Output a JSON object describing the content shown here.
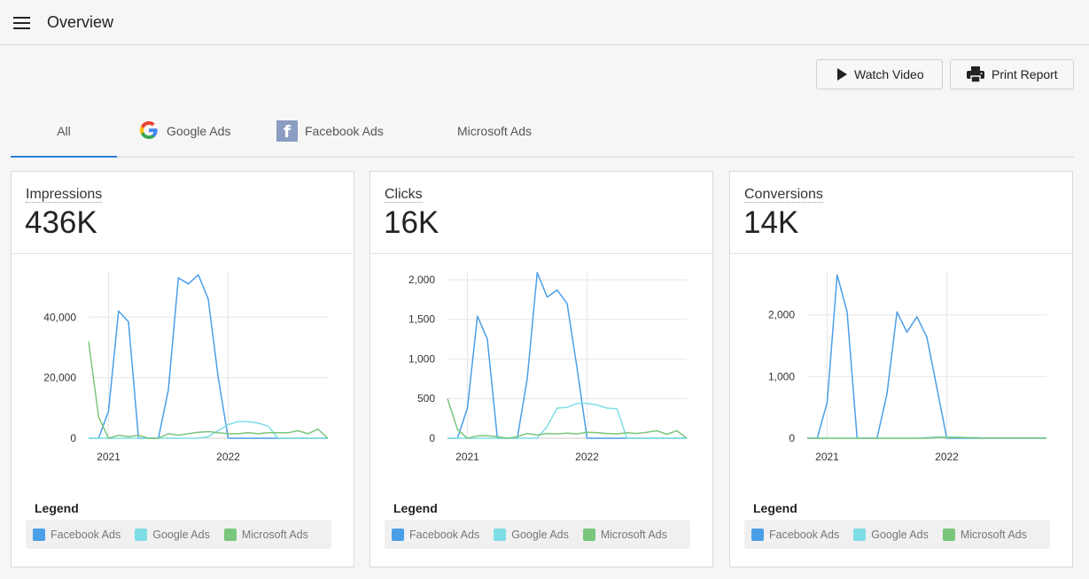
{
  "header": {
    "title": "Overview",
    "menu_icon": "hamburger-menu-icon"
  },
  "toolbar": {
    "watch_label": "Watch Video",
    "print_label": "Print Report"
  },
  "tabs": [
    {
      "label": "All",
      "active": true
    },
    {
      "label": "Google Ads",
      "icon": "google-logo-icon"
    },
    {
      "label": "Facebook Ads",
      "icon": "facebook-logo-icon"
    },
    {
      "label": "Microsoft Ads",
      "icon": "microsoft-logo-icon"
    }
  ],
  "colors": {
    "facebook": "#4a9fe8",
    "google": "#7fdde6",
    "microsoft": "#7ac67c",
    "accent": "#2b7fd8"
  },
  "legend": {
    "title": "Legend",
    "items": [
      {
        "label": "Facebook Ads",
        "color": "#4a9fe8"
      },
      {
        "label": "Google Ads",
        "color": "#7fdde6"
      },
      {
        "label": "Microsoft Ads",
        "color": "#7ac67c"
      }
    ]
  },
  "cards": [
    {
      "label": "Impressions",
      "value": "436K",
      "chart_data": {
        "type": "line",
        "xlabel": "",
        "ylabel": "",
        "x_ticks": [
          {
            "x": 2,
            "label": "2021"
          },
          {
            "x": 14,
            "label": "2022"
          }
        ],
        "ylim": [
          0,
          55000
        ],
        "y_ticks": [
          {
            "v": 0,
            "label": "0"
          },
          {
            "v": 20000,
            "label": "20,000"
          },
          {
            "v": 40000,
            "label": "40,000"
          }
        ],
        "grid": true,
        "series": [
          {
            "name": "Facebook Ads",
            "color": "#4a9fe8",
            "values": [
              0,
              0,
              9000,
              42000,
              38500,
              0,
              0,
              0,
              16000,
              53000,
              51000,
              54000,
              46000,
              20000,
              0,
              0,
              0,
              0,
              0,
              0,
              0,
              0,
              0,
              0,
              0
            ]
          },
          {
            "name": "Google Ads",
            "color": "#7fdde6",
            "values": [
              0,
              0,
              0,
              0,
              0,
              0,
              0,
              0,
              0,
              0,
              0,
              0,
              500,
              2500,
              4500,
              5500,
              5500,
              5000,
              4000,
              0,
              0,
              0,
              0,
              0,
              0
            ]
          },
          {
            "name": "Microsoft Ads",
            "color": "#7ac67c",
            "values": [
              32000,
              7000,
              0,
              1000,
              500,
              1000,
              0,
              0,
              1500,
              1000,
              1500,
              2000,
              2200,
              1800,
              1500,
              1500,
              1800,
              1500,
              1800,
              1800,
              1800,
              2500,
              1500,
              3000,
              0
            ]
          }
        ]
      }
    },
    {
      "label": "Clicks",
      "value": "16K",
      "chart_data": {
        "type": "line",
        "xlabel": "",
        "ylabel": "",
        "x_ticks": [
          {
            "x": 2,
            "label": "2021"
          },
          {
            "x": 14,
            "label": "2022"
          }
        ],
        "ylim": [
          0,
          2100
        ],
        "y_ticks": [
          {
            "v": 0,
            "label": "0"
          },
          {
            "v": 500,
            "label": "500"
          },
          {
            "v": 1000,
            "label": "1,000"
          },
          {
            "v": 1500,
            "label": "1,500"
          },
          {
            "v": 2000,
            "label": "2,000"
          }
        ],
        "grid": true,
        "series": [
          {
            "name": "Facebook Ads",
            "color": "#4a9fe8",
            "values": [
              0,
              0,
              380,
              1540,
              1250,
              0,
              0,
              0,
              750,
              2090,
              1780,
              1870,
              1700,
              880,
              0,
              0,
              0,
              0,
              0,
              0,
              0,
              0,
              0,
              0,
              0
            ]
          },
          {
            "name": "Google Ads",
            "color": "#7fdde6",
            "values": [
              0,
              0,
              0,
              0,
              0,
              0,
              0,
              0,
              0,
              0,
              150,
              380,
              390,
              440,
              440,
              420,
              380,
              370,
              0,
              0,
              0,
              0,
              0,
              0,
              0
            ]
          },
          {
            "name": "Microsoft Ads",
            "color": "#7ac67c",
            "values": [
              500,
              110,
              0,
              30,
              30,
              20,
              0,
              20,
              60,
              40,
              60,
              55,
              65,
              55,
              75,
              70,
              60,
              55,
              70,
              60,
              75,
              95,
              50,
              95,
              0
            ]
          }
        ]
      }
    },
    {
      "label": "Conversions",
      "value": "14K",
      "chart_data": {
        "type": "line",
        "xlabel": "",
        "ylabel": "",
        "x_ticks": [
          {
            "x": 2,
            "label": "2021"
          },
          {
            "x": 14,
            "label": "2022"
          }
        ],
        "ylim": [
          0,
          2700
        ],
        "y_ticks": [
          {
            "v": 0,
            "label": "0"
          },
          {
            "v": 1000,
            "label": "1,000"
          },
          {
            "v": 2000,
            "label": "2,000"
          }
        ],
        "grid": true,
        "series": [
          {
            "name": "Facebook Ads",
            "color": "#4a9fe8",
            "values": [
              0,
              0,
              580,
              2650,
              2050,
              0,
              0,
              0,
              720,
              2050,
              1720,
              1970,
              1640,
              820,
              0,
              0,
              0,
              0,
              0,
              0,
              0,
              0,
              0,
              0,
              0
            ]
          },
          {
            "name": "Google Ads",
            "color": "#7fdde6",
            "values": [
              0,
              0,
              0,
              0,
              0,
              0,
              0,
              0,
              0,
              0,
              0,
              0,
              10,
              20,
              20,
              20,
              10,
              10,
              0,
              0,
              0,
              0,
              0,
              0,
              0
            ]
          },
          {
            "name": "Microsoft Ads",
            "color": "#7ac67c",
            "values": [
              0,
              0,
              0,
              0,
              0,
              0,
              0,
              0,
              0,
              0,
              0,
              0,
              0,
              10,
              10,
              10,
              10,
              5,
              5,
              5,
              5,
              5,
              5,
              5,
              5
            ]
          }
        ]
      }
    }
  ]
}
